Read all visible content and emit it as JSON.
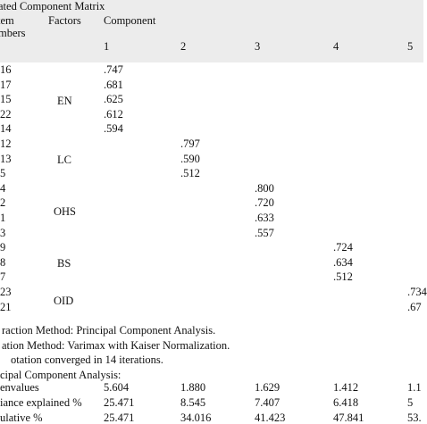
{
  "title": "ated Component Matrix",
  "header": {
    "item_line1": "tem",
    "item_line2": "mbers",
    "factors": "Factors",
    "component": "Component",
    "cols": [
      "1",
      "2",
      "3",
      "4",
      "5"
    ]
  },
  "groups": [
    {
      "factor": "EN",
      "rows": [
        {
          "item": "16",
          "values": [
            ".747",
            "",
            "",
            "",
            ""
          ]
        },
        {
          "item": "17",
          "values": [
            ".681",
            "",
            "",
            "",
            ""
          ]
        },
        {
          "item": "15",
          "values": [
            ".625",
            "",
            "",
            "",
            ""
          ]
        },
        {
          "item": "22",
          "values": [
            ".612",
            "",
            "",
            "",
            ""
          ]
        },
        {
          "item": "14",
          "values": [
            ".594",
            "",
            "",
            "",
            ""
          ]
        }
      ]
    },
    {
      "factor": "LC",
      "rows": [
        {
          "item": "12",
          "values": [
            "",
            ".797",
            "",
            "",
            ""
          ]
        },
        {
          "item": "13",
          "values": [
            "",
            ".590",
            "",
            "",
            ""
          ]
        },
        {
          "item": "5",
          "values": [
            "",
            ".512",
            "",
            "",
            ""
          ]
        }
      ]
    },
    {
      "factor": "OHS",
      "rows": [
        {
          "item": "4",
          "values": [
            "",
            "",
            ".800",
            "",
            ""
          ]
        },
        {
          "item": "2",
          "values": [
            "",
            "",
            ".720",
            "",
            ""
          ]
        },
        {
          "item": "1",
          "values": [
            "",
            "",
            ".633",
            "",
            ""
          ]
        },
        {
          "item": "3",
          "values": [
            "",
            "",
            ".557",
            "",
            ""
          ]
        }
      ]
    },
    {
      "factor": "BS",
      "rows": [
        {
          "item": "9",
          "values": [
            "",
            "",
            "",
            ".724",
            ""
          ]
        },
        {
          "item": "8",
          "values": [
            "",
            "",
            "",
            ".634",
            ""
          ]
        },
        {
          "item": "7",
          "values": [
            "",
            "",
            "",
            ".512",
            ""
          ]
        }
      ]
    },
    {
      "factor": "OID",
      "rows": [
        {
          "item": "23",
          "values": [
            "",
            "",
            "",
            "",
            ".734"
          ]
        },
        {
          "item": "21",
          "values": [
            "",
            "",
            "",
            "",
            ".67"
          ]
        }
      ]
    }
  ],
  "notes": [
    "raction Method: Principal Component Analysis.",
    "ation Method: Varimax with Kaiser Normalization.",
    "otation converged in 14 iterations.",
    "cipal Component Analysis:"
  ],
  "summary": [
    {
      "label": "envalues",
      "values": [
        "5.604",
        "1.880",
        "1.629",
        "1.412",
        "1.1"
      ]
    },
    {
      "label": "iance explained %",
      "values": [
        "25.471",
        "8.545",
        "7.407",
        "6.418",
        "5"
      ]
    },
    {
      "label": "ulative %",
      "values": [
        "25.471",
        "34.016",
        "41.423",
        "47.841",
        "53."
      ]
    }
  ]
}
